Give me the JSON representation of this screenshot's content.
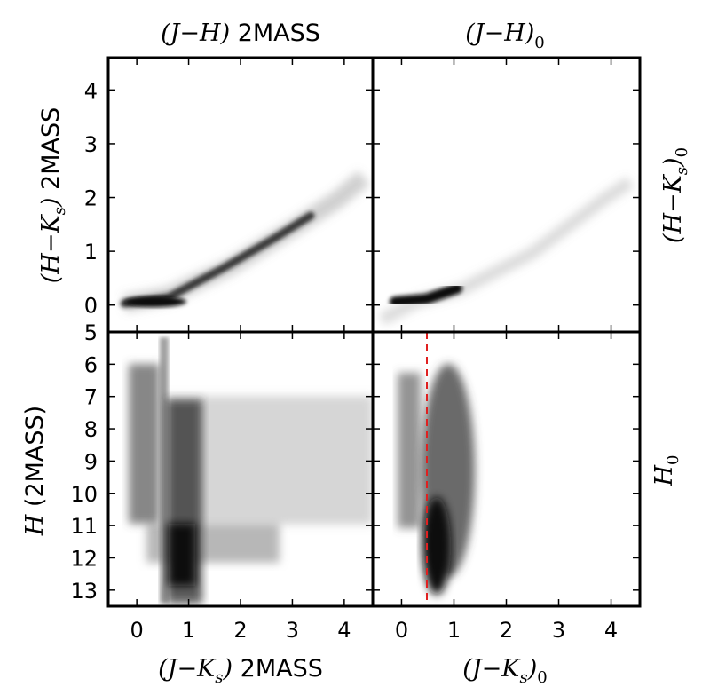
{
  "labels": {
    "top_left": {
      "math": "(J−H)",
      "text": " 2MASS"
    },
    "top_right": {
      "math": "(J−H)",
      "sub": "0"
    },
    "left_top": {
      "math": "(H−K",
      "sub": "s",
      "close": ")",
      "text": " 2MASS"
    },
    "right_top": {
      "math": "(H−K",
      "sub": "s",
      "close": ")",
      "sub2": "0"
    },
    "left_bottom": {
      "math": "H",
      "text": " (2MASS)"
    },
    "right_bottom": {
      "math": "H",
      "sub": "0"
    },
    "bottom_left": {
      "math": "(J−K",
      "sub": "s",
      "close": ")",
      "text": " 2MASS"
    },
    "bottom_right": {
      "math": "(J−K",
      "sub": "s",
      "close": ")",
      "sub2": "0"
    }
  },
  "chart_data": [
    {
      "type": "heatmap",
      "panel": "top-left",
      "x_quantity": "(J−H) 2MASS",
      "y_quantity": "(H−Ks) 2MASS",
      "xlim": [
        -0.55,
        4.55
      ],
      "ylim": [
        -0.5,
        4.6
      ],
      "yticks": [
        0,
        1,
        2,
        3,
        4
      ],
      "density_ridge": [
        [
          -0.1,
          0.0
        ],
        [
          0.5,
          0.05
        ],
        [
          1.0,
          0.3
        ],
        [
          2.0,
          0.85
        ],
        [
          2.5,
          1.2
        ],
        [
          3.0,
          1.5
        ],
        [
          4.0,
          2.1
        ]
      ]
    },
    {
      "type": "heatmap",
      "panel": "top-right",
      "x_quantity": "(J−H)0",
      "y_quantity": "(H−Ks)0",
      "xlim": [
        -0.55,
        4.55
      ],
      "ylim": [
        -0.5,
        4.6
      ],
      "density_ridge": [
        [
          -0.3,
          -0.2
        ],
        [
          0.0,
          0.05
        ],
        [
          0.5,
          0.1
        ],
        [
          1.0,
          0.3
        ],
        [
          2.0,
          0.75
        ],
        [
          3.0,
          1.3
        ],
        [
          4.0,
          2.0
        ]
      ]
    },
    {
      "type": "heatmap",
      "panel": "bottom-left",
      "x_quantity": "(J−Ks) 2MASS",
      "y_quantity": "H (2MASS)",
      "xlim": [
        -0.55,
        4.55
      ],
      "ylim": [
        13.5,
        5.0
      ],
      "xticks": [
        0,
        1,
        2,
        3,
        4
      ],
      "yticks": [
        5,
        6,
        7,
        8,
        9,
        10,
        11,
        12,
        13
      ],
      "density_regions": [
        {
          "x": [
            -0.1,
            0.3
          ],
          "y": [
            6.0,
            11.0
          ]
        },
        {
          "x": [
            0.5,
            0.6
          ],
          "y": [
            5.0,
            13.5
          ]
        },
        {
          "x": [
            0.6,
            1.1
          ],
          "y": [
            7.0,
            13.5
          ]
        },
        {
          "x": [
            0.6,
            4.4
          ],
          "y": [
            7.0,
            11.0
          ]
        },
        {
          "x": [
            0.3,
            3.0
          ],
          "y": [
            11.0,
            12.2
          ]
        }
      ]
    },
    {
      "type": "heatmap",
      "panel": "bottom-right",
      "x_quantity": "(J−Ks)0",
      "y_quantity": "H0",
      "xlim": [
        -0.55,
        4.55
      ],
      "ylim": [
        13.5,
        5.0
      ],
      "xticks": [
        0,
        1,
        2,
        3,
        4
      ],
      "density_regions": [
        {
          "x": [
            -0.1,
            0.3
          ],
          "y": [
            6.5,
            11.2
          ]
        },
        {
          "x": [
            0.4,
            1.1
          ],
          "y": [
            6.5,
            13.5
          ]
        }
      ],
      "reference_line": {
        "x": 0.48,
        "style": "dashed",
        "color": "#e02020"
      }
    }
  ]
}
